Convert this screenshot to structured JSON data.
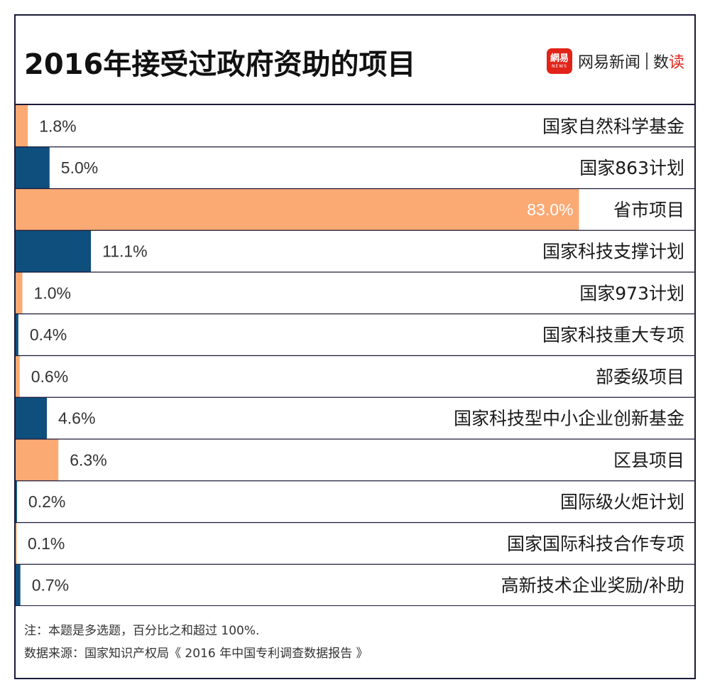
{
  "header": {
    "title": "2016年接受过政府资助的项目",
    "brand_logo_top": "網易",
    "brand_logo_bottom": "NEWS",
    "brand_name": "网易新闻",
    "brand_sub_a": "数",
    "brand_sub_b": "读"
  },
  "footer": {
    "note": "注：本题是多选题，百分比之和超过 100%.",
    "source": "数据来源：国家知识产权局《 2016 年中国专利调查数据报告 》"
  },
  "colors": {
    "orange": "#FBAA74",
    "navy": "#0E4F7E",
    "border": "#1a1a3a"
  },
  "chart_data": {
    "type": "bar",
    "orientation": "horizontal",
    "xlim": [
      0,
      100
    ],
    "unit": "%",
    "categories": [
      "国家自然科学基金",
      "国家863计划",
      "省市项目",
      "国家科技支撑计划",
      "国家973计划",
      "国家科技重大专项",
      "部委级项目",
      "国家科技型中小企业创新基金",
      "区县项目",
      "国际级火炬计划",
      "国家国际科技合作专项",
      "高新技术企业奖励/补助"
    ],
    "values": [
      1.8,
      5.0,
      83.0,
      11.1,
      1.0,
      0.4,
      0.6,
      4.6,
      6.3,
      0.2,
      0.1,
      0.7
    ],
    "labels": [
      "1.8%",
      "5.0%",
      "83.0%",
      "11.1%",
      "1.0%",
      "0.4%",
      "0.6%",
      "4.6%",
      "6.3%",
      "0.2%",
      "0.1%",
      "0.7%"
    ],
    "bar_colors": [
      "#FBAA74",
      "#0E4F7E",
      "#FBAA74",
      "#0E4F7E",
      "#FBAA74",
      "#0E4F7E",
      "#FBAA74",
      "#0E4F7E",
      "#FBAA74",
      "#0E4F7E",
      "#FBAA74",
      "#0E4F7E"
    ]
  }
}
